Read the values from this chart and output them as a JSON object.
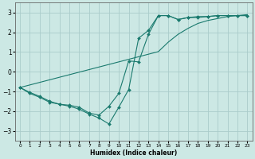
{
  "xlabel": "Humidex (Indice chaleur)",
  "xlim": [
    -0.5,
    23.5
  ],
  "ylim": [
    -3.5,
    3.5
  ],
  "yticks": [
    -3,
    -2,
    -1,
    0,
    1,
    2,
    3
  ],
  "xticks": [
    0,
    1,
    2,
    3,
    4,
    5,
    6,
    7,
    8,
    9,
    10,
    11,
    12,
    13,
    14,
    15,
    16,
    17,
    18,
    19,
    20,
    21,
    22,
    23
  ],
  "bg_color": "#cce8e4",
  "grid_color": "#aaccca",
  "line_color": "#1a7a6e",
  "line1_x": [
    0,
    1,
    2,
    3,
    4,
    5,
    6,
    7,
    8,
    9,
    10,
    11,
    12,
    13,
    14,
    15,
    16,
    17,
    18,
    19,
    20,
    21,
    22,
    23
  ],
  "line1_y": [
    -0.8,
    -1.1,
    -1.3,
    -1.55,
    -1.65,
    -1.75,
    -1.9,
    -2.15,
    -2.35,
    -2.65,
    -1.8,
    -0.9,
    1.7,
    2.1,
    2.85,
    2.85,
    2.65,
    2.75,
    2.8,
    2.8,
    2.85,
    2.85,
    2.85,
    2.85
  ],
  "line2_x": [
    0,
    1,
    2,
    3,
    4,
    5,
    6,
    7,
    8,
    9,
    10,
    11,
    12,
    13,
    14,
    15,
    16,
    17,
    18,
    19,
    20,
    21,
    22,
    23
  ],
  "line2_y": [
    -0.8,
    -1.05,
    -1.25,
    -1.5,
    -1.65,
    -1.7,
    -1.8,
    -2.1,
    -2.2,
    -1.75,
    -1.1,
    0.55,
    0.5,
    1.9,
    2.85,
    2.85,
    2.65,
    2.75,
    2.75,
    2.8,
    2.85,
    2.85,
    2.85,
    2.85
  ],
  "line3_x": [
    0,
    1,
    2,
    3,
    4,
    5,
    6,
    7,
    8,
    9,
    10,
    11,
    12,
    13,
    14,
    15,
    16,
    17,
    18,
    19,
    20,
    21,
    22,
    23
  ],
  "line3_y": [
    -0.8,
    -0.67,
    -0.54,
    -0.41,
    -0.28,
    -0.15,
    -0.02,
    0.11,
    0.24,
    0.37,
    0.5,
    0.63,
    0.76,
    0.89,
    1.02,
    1.5,
    1.9,
    2.2,
    2.45,
    2.6,
    2.7,
    2.8,
    2.85,
    2.9
  ],
  "marker": "D",
  "markersize": 2.0
}
